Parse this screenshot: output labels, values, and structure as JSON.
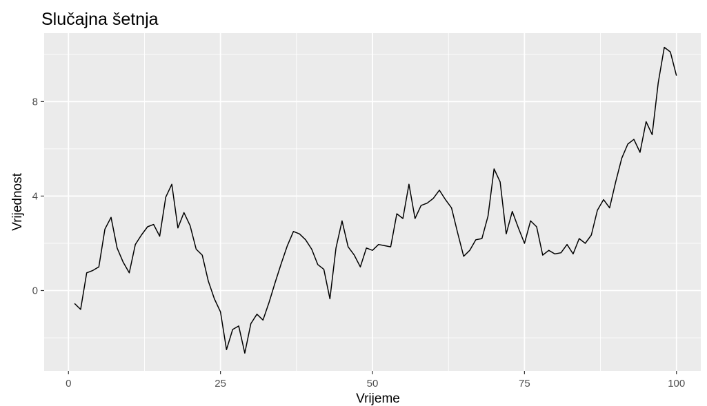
{
  "chart_data": {
    "type": "line",
    "title": "Slučajna šetnja",
    "xlabel": "Vrijeme",
    "ylabel": "Vrijednost",
    "xlim": [
      -4,
      104
    ],
    "ylim": [
      -3.4,
      10.9
    ],
    "xticks": [
      0,
      25,
      50,
      75,
      100
    ],
    "yticks": [
      0,
      4,
      8
    ],
    "grid": true,
    "legend": "none",
    "colors": {
      "panel": "#ebebeb",
      "grid": "#ffffff",
      "line": "#000000",
      "tick": "#333333"
    },
    "series": [
      {
        "x": [
          1,
          2,
          3,
          4,
          5,
          6,
          7,
          8,
          9,
          10,
          11,
          12,
          13,
          14,
          15,
          16,
          17,
          18,
          19,
          20,
          21,
          22,
          23,
          24,
          25,
          26,
          27,
          28,
          29,
          30,
          31,
          32,
          33,
          34,
          35,
          36,
          37,
          38,
          39,
          40,
          41,
          42,
          43,
          44,
          45,
          46,
          47,
          48,
          49,
          50,
          51,
          52,
          53,
          54,
          55,
          56,
          57,
          58,
          59,
          60,
          61,
          62,
          63,
          64,
          65,
          66,
          67,
          68,
          69,
          70,
          71,
          72,
          73,
          74,
          75,
          76,
          77,
          78,
          79,
          80,
          81,
          82,
          83,
          84,
          85,
          86,
          87,
          88,
          89,
          90,
          91,
          92,
          93,
          94,
          95,
          96,
          97,
          98,
          99,
          100
        ],
        "y": [
          -0.55,
          -0.8,
          0.75,
          0.85,
          1.0,
          2.6,
          3.1,
          1.8,
          1.2,
          0.75,
          1.95,
          2.35,
          2.7,
          2.8,
          2.3,
          3.95,
          4.5,
          2.65,
          3.3,
          2.75,
          1.75,
          1.5,
          0.4,
          -0.35,
          -0.9,
          -2.5,
          -1.65,
          -1.5,
          -2.65,
          -1.4,
          -1.0,
          -1.25,
          -0.5,
          0.35,
          1.15,
          1.9,
          2.5,
          2.4,
          2.15,
          1.75,
          1.1,
          0.9,
          -0.35,
          1.8,
          2.95,
          1.85,
          1.5,
          1.0,
          1.8,
          1.7,
          1.95,
          1.9,
          1.85,
          3.25,
          3.05,
          4.5,
          3.05,
          3.6,
          3.7,
          3.9,
          4.25,
          3.85,
          3.5,
          2.45,
          1.45,
          1.7,
          2.15,
          2.2,
          3.15,
          5.15,
          4.6,
          2.4,
          3.35,
          2.65,
          2.0,
          2.95,
          2.7,
          1.5,
          1.7,
          1.55,
          1.6,
          1.95,
          1.55,
          2.2,
          2.0,
          2.35,
          3.4,
          3.85,
          3.5,
          4.6,
          5.6,
          6.2,
          6.4,
          5.85,
          7.15,
          6.6,
          8.8,
          10.3,
          10.1,
          9.1
        ]
      }
    ]
  }
}
